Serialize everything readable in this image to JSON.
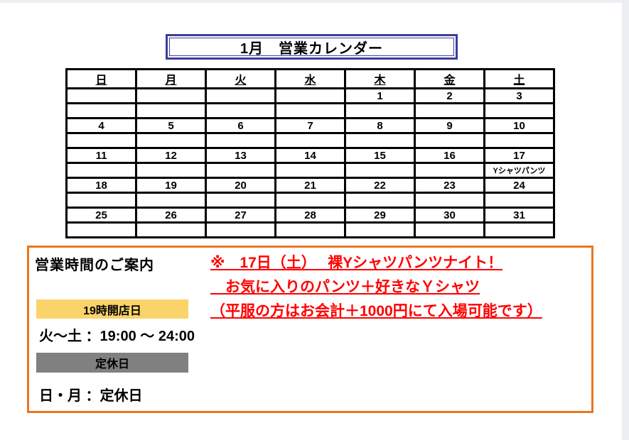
{
  "title": "1月　営業カレンダー",
  "calendar": {
    "day_headers": [
      "日",
      "月",
      "火",
      "水",
      "木",
      "金",
      "土"
    ],
    "weeks": [
      {
        "dates": [
          "",
          "",
          "",
          "",
          "1",
          "2",
          "3"
        ],
        "status": [
          "none",
          "none",
          "none",
          "none",
          "open",
          "open",
          "open"
        ],
        "notes": [
          "",
          "",
          "",
          "",
          "",
          "",
          ""
        ]
      },
      {
        "dates": [
          "4",
          "5",
          "6",
          "7",
          "8",
          "9",
          "10"
        ],
        "status": [
          "closed",
          "closed",
          "open",
          "open",
          "open",
          "open",
          "open"
        ],
        "notes": [
          "",
          "",
          "",
          "",
          "",
          "",
          ""
        ]
      },
      {
        "dates": [
          "11",
          "12",
          "13",
          "14",
          "15",
          "16",
          "17"
        ],
        "status": [
          "closed",
          "closed",
          "open",
          "open",
          "open",
          "open",
          "open"
        ],
        "notes": [
          "",
          "",
          "",
          "",
          "",
          "",
          "Yシャツパンツ"
        ]
      },
      {
        "dates": [
          "18",
          "19",
          "20",
          "21",
          "22",
          "23",
          "24"
        ],
        "status": [
          "closed",
          "closed",
          "open",
          "open",
          "open",
          "open",
          "open"
        ],
        "notes": [
          "",
          "",
          "",
          "",
          "",
          "",
          ""
        ]
      },
      {
        "dates": [
          "25",
          "26",
          "27",
          "28",
          "29",
          "30",
          "31"
        ],
        "status": [
          "closed",
          "closed",
          "open",
          "open",
          "open",
          "open",
          "open"
        ],
        "notes": [
          "",
          "",
          "",
          "",
          "",
          "",
          ""
        ]
      }
    ]
  },
  "info": {
    "heading": "営業時間のご案内",
    "notice_lines": [
      "※　17日（土）　 裸Yシャツパンツナイト！",
      "　お気に入りのパンツ＋好きなＹシャツ",
      "（平服の方はお会計＋1000円にて入場可能です）"
    ],
    "open_legend": "19時開店日",
    "open_hours": "火～土 ：19:00 ～ 24:00",
    "closed_legend": "定休日",
    "closed_days": "日・月 ：定休日"
  },
  "colors": {
    "open": "#FAD46B",
    "closed": "#808080",
    "notice_red": "#FF0000",
    "box_border": "#E87722",
    "title_border": "#3C3C9E"
  }
}
